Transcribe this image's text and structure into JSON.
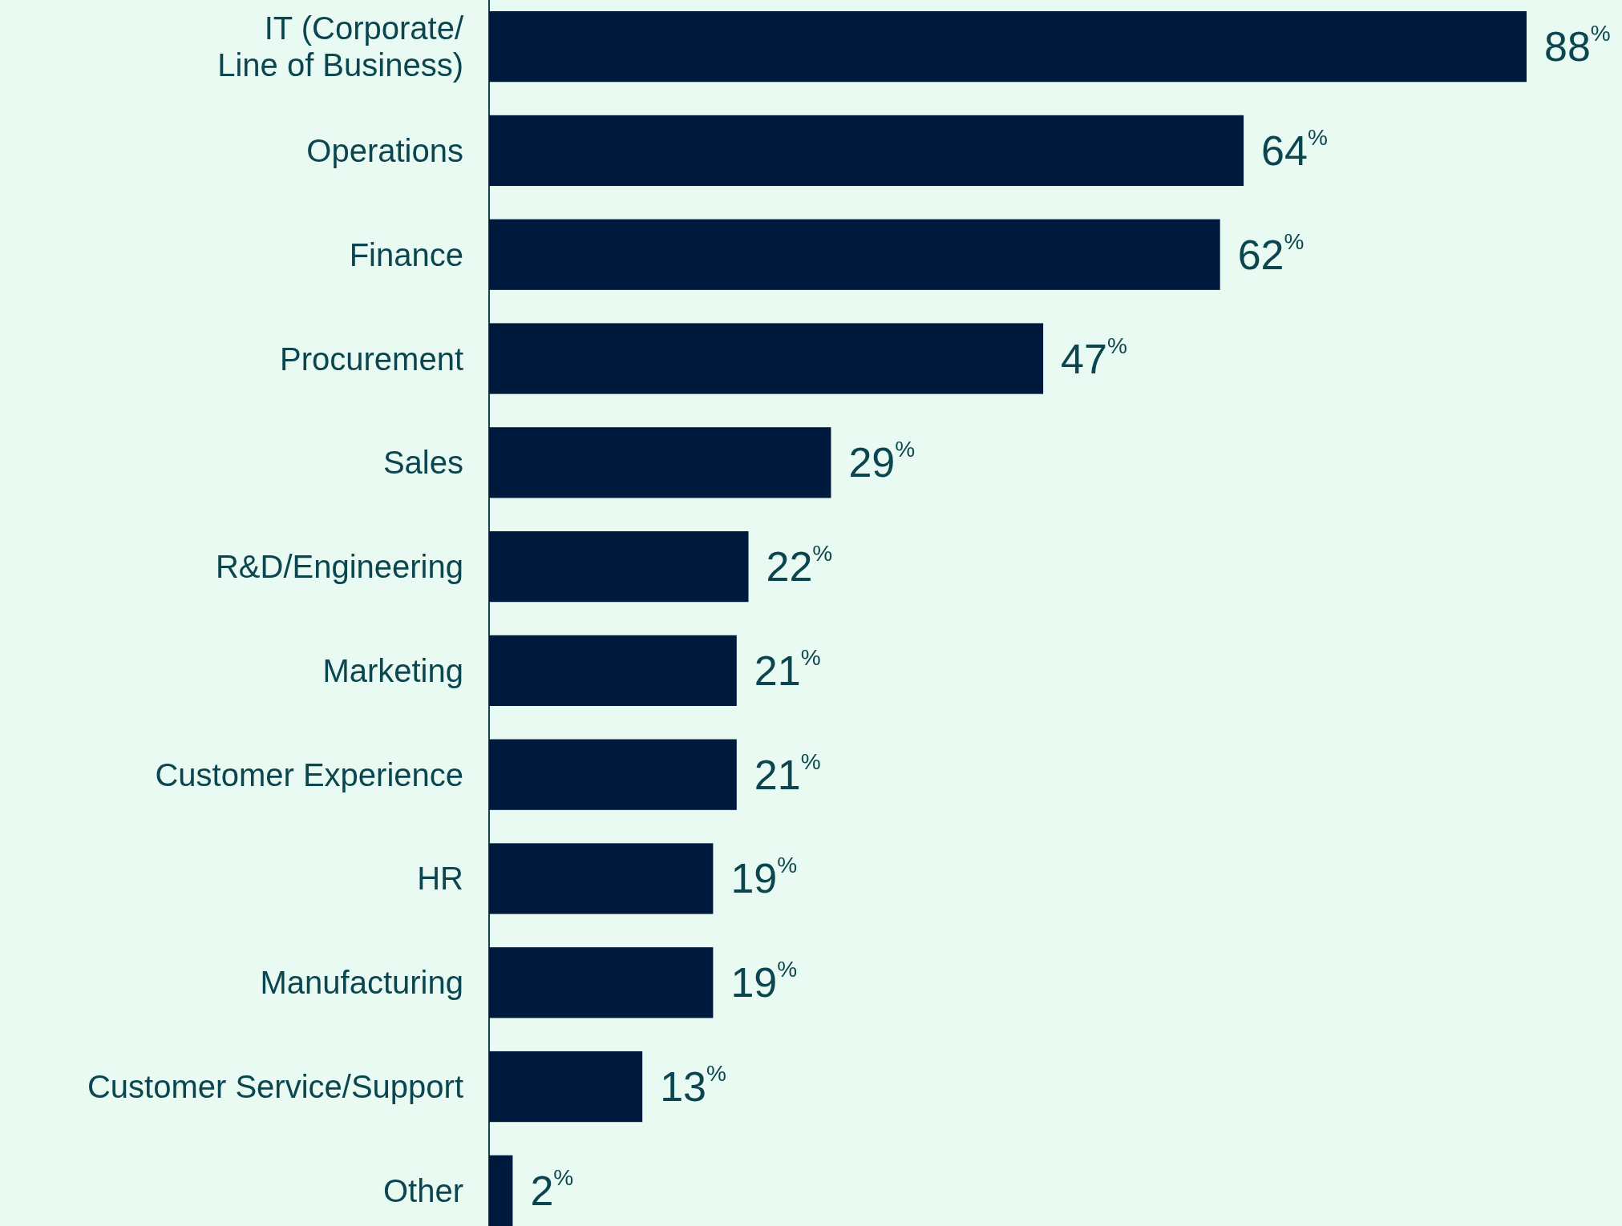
{
  "chart_data": {
    "type": "bar",
    "orientation": "horizontal",
    "relative": false,
    "categories": [
      "IT (Corporate/\nLine of Business)",
      "Operations",
      "Finance",
      "Procurement",
      "Sales",
      "R&D/Engineering",
      "Marketing",
      "Customer Experience",
      "HR",
      "Manufacturing",
      "Customer Service/Support",
      "Other"
    ],
    "values": [
      88,
      64,
      62,
      47,
      29,
      22,
      21,
      21,
      19,
      19,
      13,
      2
    ],
    "value_labels": [
      "88$^{%}$",
      "64$^{%}$",
      "62$^{%}$",
      "47$^{%}$",
      "29$^{%}$",
      "22$^{%}$",
      "21$^{%}$",
      "21$^{%}$",
      "19$^{%}$",
      "19$^{%}$",
      "13$^{%}$",
      "2$^{%}$"
    ],
    "color": "#001a3d"
  }
}
